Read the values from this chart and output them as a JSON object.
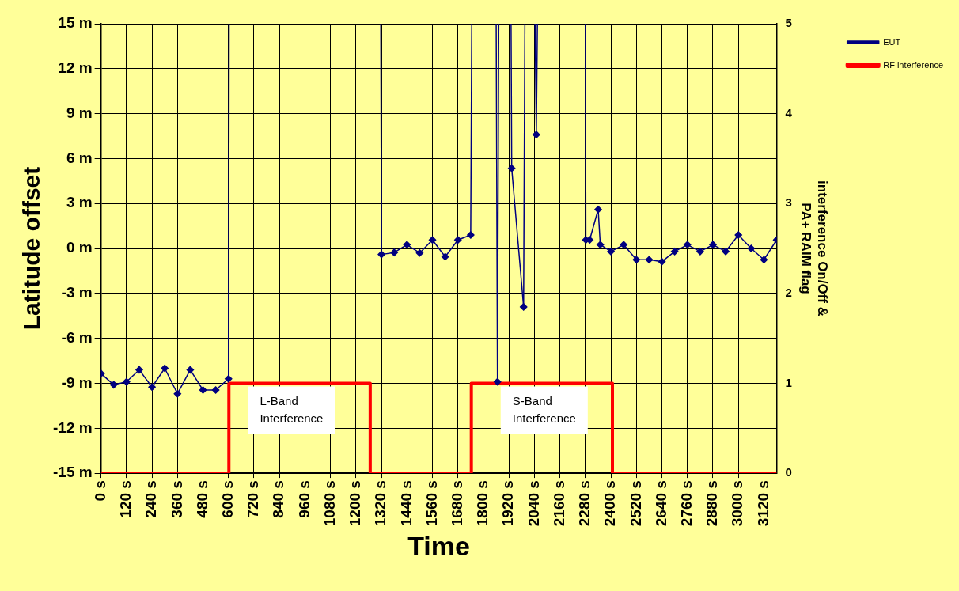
{
  "chart_data": {
    "type": "line",
    "xlabel": "Time",
    "ylabel": "Latitude offset",
    "y2label": "interference On/Off &\nPA+ RAIM flag",
    "xlim": [
      0,
      3180
    ],
    "xticks": [
      {
        "value": 0,
        "label": "0 s"
      },
      {
        "value": 120,
        "label": "120 s"
      },
      {
        "value": 240,
        "label": "240 s"
      },
      {
        "value": 360,
        "label": "360 s"
      },
      {
        "value": 480,
        "label": "480 s"
      },
      {
        "value": 600,
        "label": "600 s"
      },
      {
        "value": 720,
        "label": "720 s"
      },
      {
        "value": 840,
        "label": "840 s"
      },
      {
        "value": 960,
        "label": "960 s"
      },
      {
        "value": 1080,
        "label": "1080 s"
      },
      {
        "value": 1200,
        "label": "1200 s"
      },
      {
        "value": 1320,
        "label": "1320 s"
      },
      {
        "value": 1440,
        "label": "1440 s"
      },
      {
        "value": 1560,
        "label": "1560 s"
      },
      {
        "value": 1680,
        "label": "1680 s"
      },
      {
        "value": 1800,
        "label": "1800 s"
      },
      {
        "value": 1920,
        "label": "1920 s"
      },
      {
        "value": 2040,
        "label": "2040 s"
      },
      {
        "value": 2160,
        "label": "2160 s"
      },
      {
        "value": 2280,
        "label": "2280 s"
      },
      {
        "value": 2400,
        "label": "2400 s"
      },
      {
        "value": 2520,
        "label": "2520 s"
      },
      {
        "value": 2640,
        "label": "2640 s"
      },
      {
        "value": 2760,
        "label": "2760 s"
      },
      {
        "value": 2880,
        "label": "2880 s"
      },
      {
        "value": 3000,
        "label": "3000 s"
      },
      {
        "value": 3120,
        "label": "3120 s"
      }
    ],
    "ylim": [
      -15,
      15
    ],
    "yticks": [
      {
        "value": -15,
        "label": "-15 m"
      },
      {
        "value": -12,
        "label": "-12 m"
      },
      {
        "value": -9,
        "label": "-9 m"
      },
      {
        "value": -6,
        "label": "-6 m"
      },
      {
        "value": -3,
        "label": "-3 m"
      },
      {
        "value": 0,
        "label": "0 m"
      },
      {
        "value": 3,
        "label": "3 m"
      },
      {
        "value": 6,
        "label": "6 m"
      },
      {
        "value": 9,
        "label": "9 m"
      },
      {
        "value": 12,
        "label": "12 m"
      },
      {
        "value": 15,
        "label": "15 m"
      }
    ],
    "y2lim": [
      0,
      5
    ],
    "y2ticks": [
      0,
      1,
      2,
      3,
      4,
      5
    ],
    "grid": true,
    "legend": "top right",
    "line_style": "solid",
    "annotations": [
      "L-Band Interference",
      "S-Band Interference"
    ],
    "series": [
      {
        "name": "EUT",
        "color": "#000080",
        "axis": "y",
        "marker": "diamond",
        "x": [
          0,
          60,
          120,
          180,
          240,
          300,
          360,
          420,
          480,
          540,
          600,
          603,
          900,
          1317,
          1320,
          1380,
          1440,
          1500,
          1560,
          1620,
          1680,
          1740,
          1745,
          1800,
          1860,
          1866,
          1872,
          1900,
          1930,
          1933,
          1989,
          1995,
          2020,
          2043,
          2049,
          2054,
          2150,
          2280,
          2282,
          2300,
          2340,
          2350,
          2400,
          2460,
          2520,
          2580,
          2640,
          2700,
          2760,
          2820,
          2880,
          2940,
          3000,
          3060,
          3120,
          3180
        ],
        "values": [
          -8.35,
          -9.1,
          -8.9,
          -8.1,
          -9.25,
          -8.0,
          -9.7,
          -8.1,
          -9.45,
          -9.45,
          -8.7,
          15,
          null,
          15,
          -0.4,
          -0.27,
          0.25,
          -0.3,
          0.57,
          -0.55,
          0.57,
          0.9,
          15,
          null,
          15,
          -8.9,
          15,
          null,
          15,
          5.35,
          -3.9,
          15,
          null,
          15,
          7.6,
          15,
          null,
          15,
          0.57,
          0.57,
          2.6,
          0.25,
          -0.2,
          0.25,
          -0.75,
          -0.75,
          -0.88,
          -0.2,
          0.25,
          -0.2,
          0.25,
          -0.2,
          0.9,
          0,
          -0.75,
          0.57
        ]
      },
      {
        "name": "RF interference",
        "color": "#ff0000",
        "axis": "y2",
        "type": "step",
        "x": [
          0,
          602,
          1267,
          1743,
          2407,
          3180
        ],
        "values": [
          0,
          1,
          0,
          1,
          0,
          0
        ]
      }
    ]
  }
}
